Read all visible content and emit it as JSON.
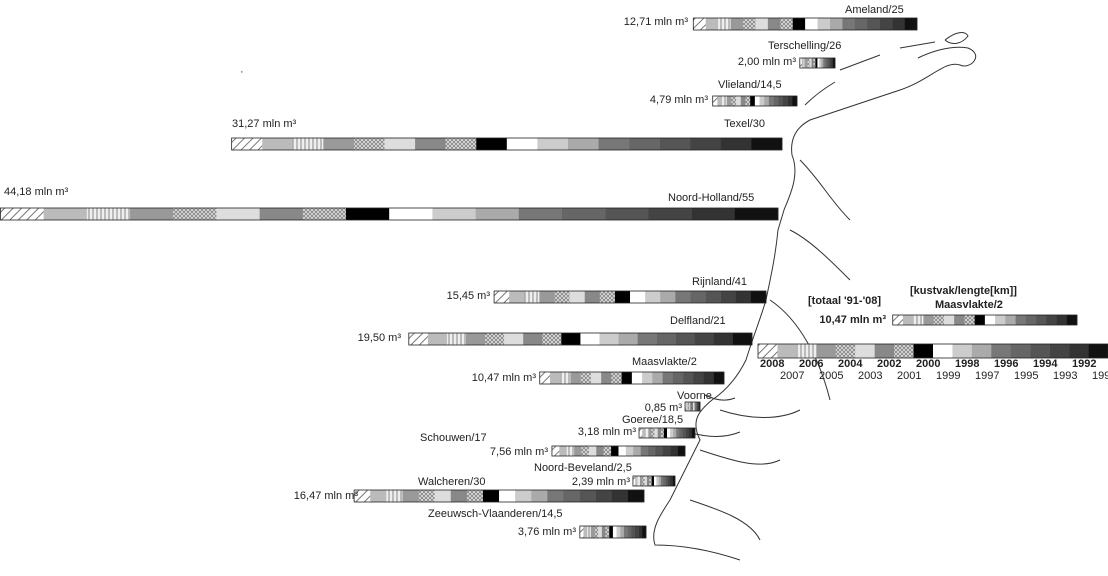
{
  "sections": [
    {
      "name": "Ameland/25",
      "volume": 12.71,
      "volume_label": "12,71 mln m³"
    },
    {
      "name": "Terschelling/26",
      "volume": 2.0,
      "volume_label": "2,00 mln m³"
    },
    {
      "name": "Vlieland/14,5",
      "volume": 4.79,
      "volume_label": "4,79 mln m³"
    },
    {
      "name": "Texel/30",
      "volume": 31.27,
      "volume_label": "31,27 mln m³"
    },
    {
      "name": "Noord-Holland/55",
      "volume": 44.18,
      "volume_label": "44,18 mln m³"
    },
    {
      "name": "Rijnland/41",
      "volume": 15.45,
      "volume_label": "15,45 m³"
    },
    {
      "name": "Delfland/21",
      "volume": 19.5,
      "volume_label": "19,50 m³"
    },
    {
      "name": "Maasvlakte/2",
      "volume": 10.47,
      "volume_label": "10,47 mln m³"
    },
    {
      "name": "Voorne",
      "volume": 0.85,
      "volume_label": "0,85 m³"
    },
    {
      "name": "Goeree/18,5",
      "volume": 3.18,
      "volume_label": "3,18 mln m³"
    },
    {
      "name": "Schouwen/17",
      "volume": 7.56,
      "volume_label": "7,56 mln m³"
    },
    {
      "name": "Noord-Beveland/2,5",
      "volume": 2.39,
      "volume_label": "2,39 mln m³"
    },
    {
      "name": "Walcheren/30",
      "volume": 16.47,
      "volume_label": "16,47 mln m³"
    },
    {
      "name": "Zeeuwsch-Vlaanderen/14,5",
      "volume": 3.76,
      "volume_label": "3,76 mln m³"
    }
  ],
  "legend": {
    "total_label": "[totaal '91-'08]",
    "section_label": "[kustvak/lengte[km]]",
    "example_name": "Maasvlakte/2",
    "example_volume": 10.47,
    "example_volume_label": "10,47 mln m³",
    "years_top": [
      "2008",
      "2006",
      "2004",
      "2002",
      "2000",
      "1998",
      "1996",
      "1994",
      "1992"
    ],
    "years_bottom": [
      "2007",
      "2005",
      "2003",
      "2001",
      "1999",
      "1997",
      "1995",
      "1993",
      "199"
    ]
  }
}
